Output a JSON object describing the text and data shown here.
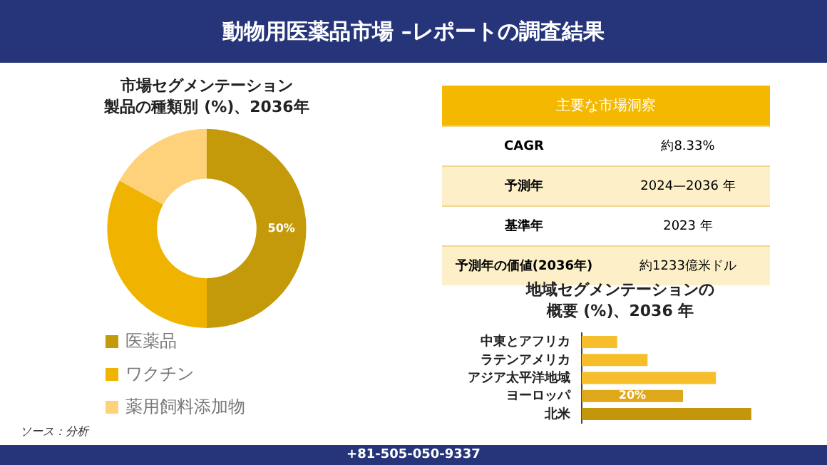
{
  "chart_data": [
    {
      "type": "other",
      "title": "動物用医薬品市場 –レポートの調査結果",
      "annotations": [
        "+81-505-050-9337"
      ]
    },
    {
      "type": "donut",
      "title": "市場セグメンテーション",
      "subtitle": "製品の種類別 (%)、2036年",
      "categories": [
        "医薬品",
        "ワクチン",
        "薬用飼料添加物"
      ],
      "values": [
        50,
        33,
        17
      ],
      "colors": [
        "#c49a0a",
        "#f0b400",
        "#fdd27a"
      ],
      "value_labels": [
        "50%",
        null,
        null
      ],
      "legend": "bottom",
      "annotations": [
        "ソース：分析"
      ]
    },
    {
      "type": "other",
      "title": "主要な市場洞察",
      "annotations": [
        "CAGR",
        "約8.33%",
        "予測年",
        "2024—2036 年",
        "基準年",
        "2023 年",
        "予測年の価値(2036年)",
        "約1233億米ドル"
      ]
    },
    {
      "type": "bar",
      "orientation": "horizontal",
      "title": "地域セグメンテーションの",
      "subtitle": "概要 (%)、2036 年",
      "categories": [
        "中東とアフリカ",
        "ラテンアメリカ",
        "アジア太平洋地域",
        "ヨーロッパ",
        "北米"
      ],
      "values": [
        7,
        13,
        26.5,
        20,
        33.5
      ],
      "colors": [
        "#f5be2a",
        "#f5be2a",
        "#f5be2a",
        "#dfa81a",
        "#c4960c"
      ],
      "value_labels": [
        null,
        null,
        null,
        "20%",
        null
      ],
      "tick_labels": "y",
      "grid": false
    }
  ]
}
